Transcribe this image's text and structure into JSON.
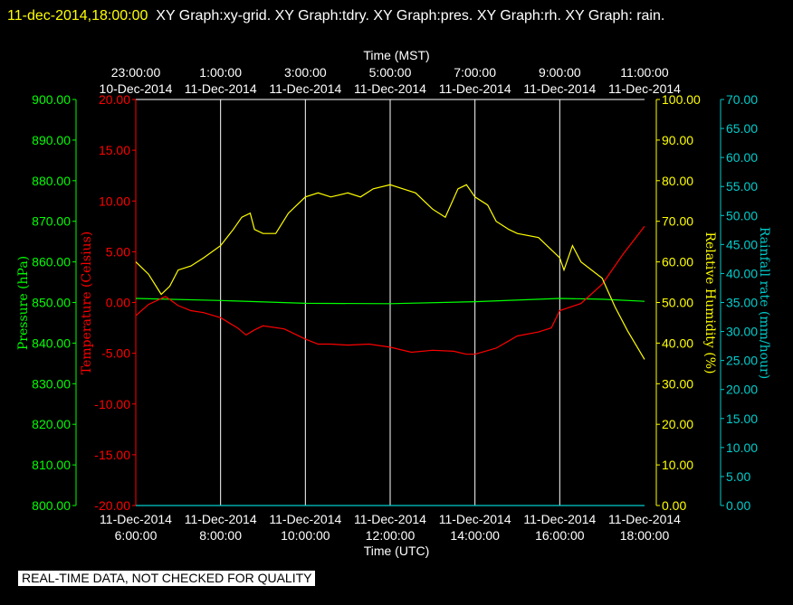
{
  "header": {
    "timestamp": "11-dec-2014,18:00:00",
    "graphs": "XY Graph:xy-grid.  XY Graph:tdry.  XY Graph:pres.  XY Graph:rh.  XY Graph: rain."
  },
  "footer": {
    "notice": "REAL-TIME DATA, NOT CHECKED FOR QUALITY"
  },
  "colors": {
    "pressure": "#00ff00",
    "temperature": "#ff0000",
    "humidity": "#ffff00",
    "rain": "#00cccc",
    "grid": "#ffffff",
    "background": "#000000"
  },
  "chart_data": {
    "type": "line",
    "grid": true,
    "x": {
      "label_bottom": "Time (UTC)",
      "label_top": "Time (MST)",
      "range_utc_hours": [
        6,
        18
      ],
      "ticks_bottom": [
        {
          "date": "11-Dec-2014",
          "time": "6:00:00"
        },
        {
          "date": "11-Dec-2014",
          "time": "8:00:00"
        },
        {
          "date": "11-Dec-2014",
          "time": "10:00:00"
        },
        {
          "date": "11-Dec-2014",
          "time": "12:00:00"
        },
        {
          "date": "11-Dec-2014",
          "time": "14:00:00"
        },
        {
          "date": "11-Dec-2014",
          "time": "16:00:00"
        },
        {
          "date": "11-Dec-2014",
          "time": "18:00:00"
        }
      ],
      "ticks_top": [
        {
          "time": "23:00:00",
          "date": "10-Dec-2014"
        },
        {
          "time": "1:00:00",
          "date": "11-Dec-2014"
        },
        {
          "time": "3:00:00",
          "date": "11-Dec-2014"
        },
        {
          "time": "5:00:00",
          "date": "11-Dec-2014"
        },
        {
          "time": "7:00:00",
          "date": "11-Dec-2014"
        },
        {
          "time": "9:00:00",
          "date": "11-Dec-2014"
        },
        {
          "time": "11:00:00",
          "date": "11-Dec-2014"
        }
      ]
    },
    "axes": {
      "pressure": {
        "label": "Pressure (hPa)",
        "range": [
          800,
          900
        ],
        "ticks": [
          "800.00",
          "810.00",
          "820.00",
          "830.00",
          "840.00",
          "850.00",
          "860.00",
          "870.00",
          "880.00",
          "890.00",
          "900.00"
        ]
      },
      "temperature": {
        "label": "Temperature (Celsius)",
        "range": [
          -20,
          20
        ],
        "ticks": [
          "-20.00",
          "-15.00",
          "-10.00",
          "-5.00",
          "0.00",
          "5.00",
          "10.00",
          "15.00",
          "20.00"
        ]
      },
      "humidity": {
        "label": "Relative Humidity (%)",
        "range": [
          0,
          100
        ],
        "ticks": [
          "0.00",
          "10.00",
          "20.00",
          "30.00",
          "40.00",
          "50.00",
          "60.00",
          "70.00",
          "80.00",
          "90.00",
          "100.00"
        ]
      },
      "rain": {
        "label": "Rainfall rate (mm/hour)",
        "range": [
          0,
          70
        ],
        "ticks": [
          "0.00",
          "5.00",
          "10.00",
          "15.00",
          "20.00",
          "25.00",
          "30.00",
          "35.00",
          "40.00",
          "45.00",
          "50.00",
          "55.00",
          "60.00",
          "65.00",
          "70.00"
        ]
      }
    },
    "series": [
      {
        "key": "pressure",
        "axis": "pressure",
        "x": [
          6,
          8,
          10,
          12,
          14,
          16,
          17,
          18
        ],
        "y": [
          851.0,
          850.5,
          849.8,
          849.7,
          850.2,
          851.0,
          850.8,
          850.3
        ]
      },
      {
        "key": "temperature",
        "axis": "temperature",
        "x": [
          6,
          6.3,
          6.7,
          7,
          7.3,
          7.6,
          8,
          8.4,
          8.6,
          8.8,
          9,
          9.5,
          10,
          10.3,
          10.6,
          11,
          11.5,
          12,
          12.5,
          13,
          13.5,
          13.8,
          14,
          14.5,
          15,
          15.5,
          15.8,
          16,
          16.5,
          17,
          17.5,
          18
        ],
        "y": [
          -1.3,
          -0.2,
          0.6,
          -0.3,
          -0.8,
          -1.0,
          -1.5,
          -2.5,
          -3.2,
          -2.7,
          -2.3,
          -2.6,
          -3.6,
          -4.1,
          -4.1,
          -4.2,
          -4.1,
          -4.4,
          -4.9,
          -4.7,
          -4.8,
          -5.1,
          -5.1,
          -4.5,
          -3.3,
          -2.9,
          -2.5,
          -0.8,
          -0.1,
          1.8,
          4.8,
          7.5
        ]
      },
      {
        "key": "humidity",
        "axis": "humidity",
        "x": [
          6,
          6.3,
          6.6,
          6.8,
          7,
          7.3,
          7.6,
          8,
          8.3,
          8.5,
          8.7,
          8.8,
          9,
          9.3,
          9.6,
          10,
          10.3,
          10.6,
          11,
          11.3,
          11.6,
          12,
          12.3,
          12.6,
          12.8,
          13,
          13.3,
          13.6,
          13.8,
          14,
          14.3,
          14.5,
          14.8,
          15,
          15.5,
          16,
          16.1,
          16.3,
          16.5,
          17,
          17.3,
          17.6,
          18
        ],
        "y": [
          60,
          57,
          52,
          54,
          58,
          59,
          61,
          64,
          68,
          71,
          72,
          68,
          67,
          67,
          72,
          76,
          77,
          76,
          77,
          76,
          78,
          79,
          78,
          77,
          75,
          73,
          71,
          78,
          79,
          76,
          74,
          70,
          68,
          67,
          66,
          61,
          58,
          64,
          60,
          56,
          49,
          43,
          36
        ]
      },
      {
        "key": "rain",
        "axis": "rain",
        "x": [
          6,
          18
        ],
        "y": [
          0,
          0
        ]
      }
    ]
  }
}
